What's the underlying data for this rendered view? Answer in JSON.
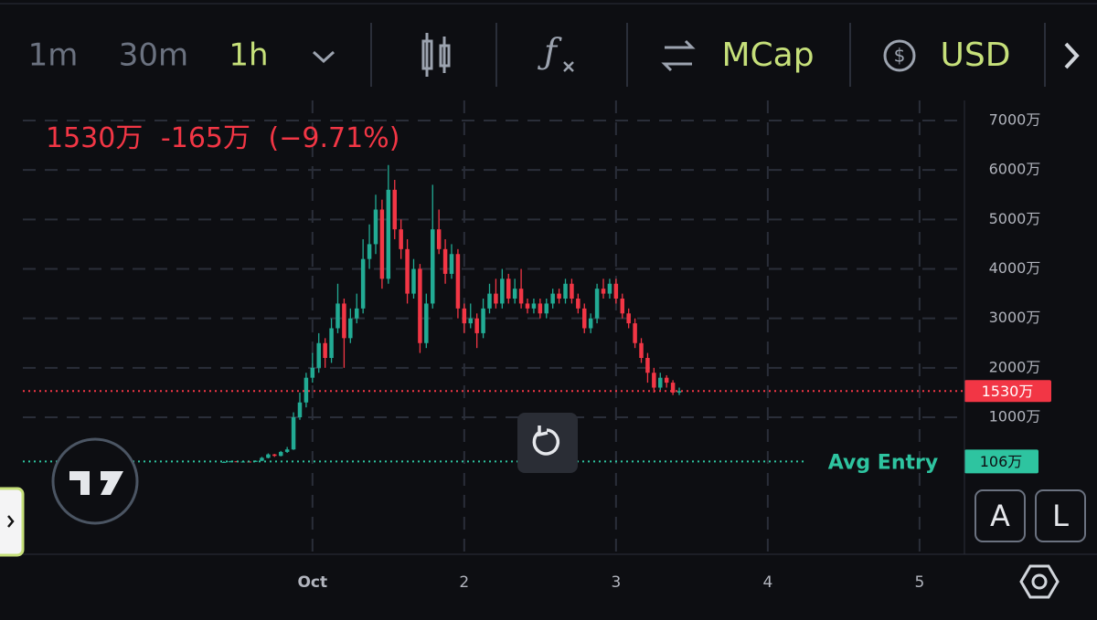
{
  "toolbar": {
    "intervals": [
      "1m",
      "30m",
      "1h"
    ],
    "active_interval": 2,
    "mode": "MCap",
    "currency": "USD"
  },
  "scale_buttons": [
    "A",
    "L"
  ],
  "chart_data": {
    "type": "candlestick",
    "legend": {
      "price": "1530万",
      "change": "-165万",
      "change_pct": "(−9.71%)"
    },
    "up_color": "#22ab94",
    "down_color": "#f23645",
    "x": [
      -14,
      -13,
      -12,
      -11,
      -10,
      -9,
      -8,
      -7,
      -6,
      -5,
      -4,
      -3,
      -2,
      -1,
      0,
      1,
      2,
      3,
      4,
      5,
      6,
      7,
      8,
      9,
      10,
      11,
      12,
      13,
      14,
      15,
      16,
      17,
      18,
      19,
      20,
      21,
      22,
      23,
      24,
      25,
      26,
      27,
      28,
      29,
      30,
      31,
      32,
      33,
      34,
      35,
      36,
      37,
      38,
      39,
      40,
      41,
      42,
      43,
      44,
      45,
      46,
      47,
      48,
      49,
      50,
      51,
      52,
      53,
      54,
      55,
      56,
      57,
      58
    ],
    "open": [
      90,
      95,
      110,
      100,
      105,
      98,
      120,
      180,
      250,
      220,
      300,
      350,
      1000,
      1300,
      1800,
      2000,
      2500,
      2200,
      2800,
      3300,
      2600,
      3000,
      3200,
      4200,
      4500,
      5200,
      3800,
      5600,
      4800,
      4400,
      3500,
      4000,
      2500,
      3300,
      4800,
      4400,
      3900,
      4300,
      3200,
      2900,
      3000,
      2700,
      3200,
      3500,
      3300,
      3800,
      3400,
      3600,
      3300,
      3200,
      3300,
      3100,
      3300,
      3500,
      3400,
      3700,
      3400,
      3200,
      2800,
      3000,
      3600,
      3500,
      3700,
      3400,
      3100,
      2900,
      2500,
      2200,
      1900,
      1600,
      1800,
      1700,
      1500
    ],
    "high": [
      115,
      120,
      115,
      115,
      110,
      130,
      200,
      270,
      260,
      320,
      400,
      1100,
      1500,
      1900,
      2300,
      2700,
      2600,
      3000,
      3700,
      3400,
      3200,
      3500,
      4600,
      4900,
      5500,
      5400,
      6100,
      5800,
      5000,
      4600,
      4200,
      4100,
      3500,
      5700,
      5200,
      4600,
      4500,
      4400,
      3300,
      3300,
      3100,
      3400,
      3700,
      3800,
      4000,
      3900,
      3800,
      4000,
      3400,
      3400,
      3400,
      3400,
      3600,
      3600,
      3800,
      3800,
      3500,
      3300,
      3100,
      3700,
      3800,
      3800,
      3800,
      3500,
      3200,
      3000,
      2600,
      2300,
      2000,
      1900,
      1850,
      1750,
      1600
    ],
    "low": [
      85,
      90,
      95,
      95,
      90,
      95,
      115,
      170,
      200,
      210,
      280,
      340,
      950,
      1200,
      1700,
      1900,
      2000,
      2100,
      2700,
      2000,
      2500,
      2900,
      3100,
      4000,
      4300,
      3600,
      3700,
      4600,
      4200,
      3300,
      3400,
      2300,
      2400,
      3200,
      4300,
      3700,
      3800,
      3000,
      2700,
      2800,
      2400,
      2600,
      3100,
      3200,
      3200,
      3300,
      3300,
      3200,
      3100,
      3100,
      3000,
      3000,
      3200,
      3300,
      3300,
      3300,
      3100,
      2700,
      2700,
      2900,
      3400,
      3400,
      3300,
      3000,
      2800,
      2400,
      2100,
      1700,
      1500,
      1550,
      1600,
      1450,
      1450
    ],
    "close": [
      95,
      110,
      100,
      105,
      98,
      120,
      180,
      250,
      220,
      300,
      350,
      1000,
      1300,
      1800,
      2000,
      2500,
      2200,
      2800,
      3300,
      2600,
      3000,
      3200,
      4200,
      4500,
      5200,
      3800,
      5600,
      4800,
      4400,
      3500,
      4000,
      2500,
      3300,
      4800,
      4400,
      3900,
      4300,
      3200,
      2900,
      3000,
      2700,
      3200,
      3500,
      3300,
      3800,
      3400,
      3600,
      3300,
      3200,
      3300,
      3100,
      3300,
      3500,
      3400,
      3700,
      3400,
      3200,
      2800,
      3000,
      3600,
      3500,
      3700,
      3400,
      3100,
      2900,
      2500,
      2200,
      1900,
      1600,
      1800,
      1700,
      1500,
      1530
    ],
    "xlim": [
      -45.8,
      103.1
    ],
    "xticks": [
      {
        "value": 0,
        "label": "Oct"
      },
      {
        "value": 24,
        "label": "2"
      },
      {
        "value": 48,
        "label": "3"
      },
      {
        "value": 72,
        "label": "4"
      },
      {
        "value": 96,
        "label": "5"
      }
    ],
    "ylim": [
      -1769,
      7406
    ],
    "yticks": [
      {
        "value": 1000,
        "label": "1000万"
      },
      {
        "value": 2000,
        "label": "2000万"
      },
      {
        "value": 3000,
        "label": "3000万"
      },
      {
        "value": 4000,
        "label": "4000万"
      },
      {
        "value": 5000,
        "label": "5000万"
      },
      {
        "value": 6000,
        "label": "6000万"
      },
      {
        "value": 7000,
        "label": "7000万"
      }
    ],
    "last_price": {
      "value": 1530,
      "label": "1530万"
    },
    "avg_entry": {
      "name": "Avg Entry",
      "value": 106,
      "label": "106万",
      "color": "#2ec4a0"
    },
    "grid": true
  }
}
